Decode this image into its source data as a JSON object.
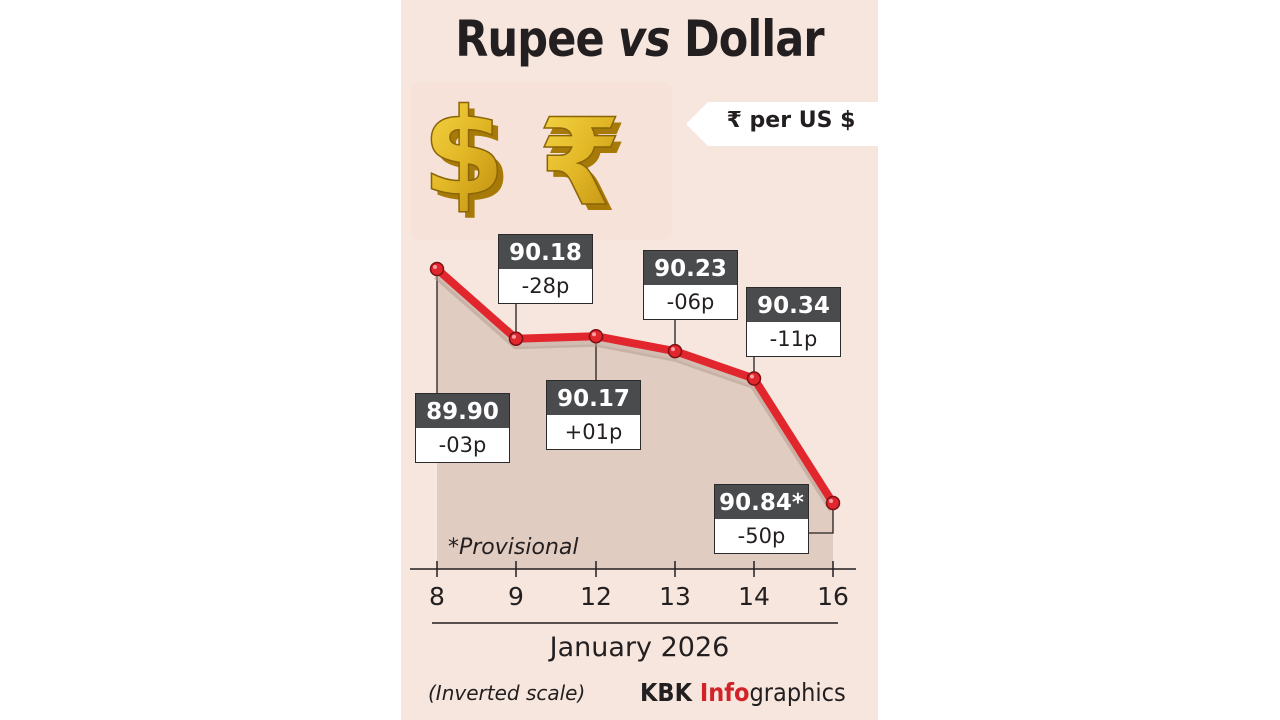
{
  "title_part1": "Rupee ",
  "title_part2": "vs",
  "title_part3": " Dollar",
  "unit": "₹ per US $",
  "provisional_note": "*Provisional",
  "scale_note": "(Inverted scale)",
  "credit_part1": "KBK ",
  "credit_part2": "Info",
  "credit_part3": "graphics",
  "colors": {
    "line": "#e2262d",
    "area": "#dcc6bb",
    "label_dark": "#4a4b4d",
    "background": "#f6e6dd"
  },
  "icons": [
    "dollar-sign-icon",
    "rupee-sign-icon"
  ],
  "chart_data": {
    "type": "line",
    "title": "Rupee vs Dollar",
    "ylabel": "₹ per US $",
    "xlabel": "January 2026",
    "inverted_y": true,
    "categories": [
      "8",
      "9",
      "12",
      "13",
      "14",
      "16"
    ],
    "values": [
      89.9,
      90.18,
      90.17,
      90.23,
      90.34,
      90.84
    ],
    "value_labels": [
      "89.90",
      "90.18",
      "90.17",
      "90.23",
      "90.34",
      "90.84*"
    ],
    "change_labels": [
      "-03p",
      "-28p",
      "+01p",
      "-06p",
      "-11p",
      "-50p"
    ],
    "ylim": [
      89.9,
      90.84
    ],
    "grid": false,
    "legend": "none"
  }
}
